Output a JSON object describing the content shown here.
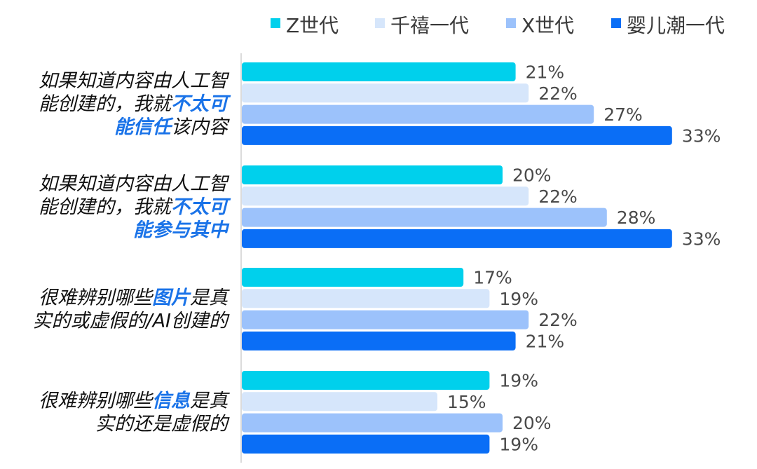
{
  "chart_data": {
    "type": "bar",
    "orientation": "horizontal",
    "legend_position": "top",
    "xlim": [
      0,
      33
    ],
    "series": [
      {
        "name": "Z世代",
        "color": "#00d0ec",
        "values": [
          21,
          20,
          17,
          19
        ]
      },
      {
        "name": "千禧一代",
        "color": "#d6e6fb",
        "values": [
          22,
          22,
          19,
          15
        ]
      },
      {
        "name": "X世代",
        "color": "#9cc2fb",
        "values": [
          27,
          28,
          22,
          20
        ]
      },
      {
        "name": "婴儿潮一代",
        "color": "#0a6ef6",
        "values": [
          33,
          33,
          21,
          19
        ]
      }
    ],
    "value_suffix": "%",
    "categories": [
      {
        "label": "如果知道内容由人工智能创建的，我就不太可能信任该内容",
        "lines": [
          [
            {
              "text": "如果知道内容由人工智",
              "hl": false
            }
          ],
          [
            {
              "text": "能创建的，我就",
              "hl": false
            },
            {
              "text": "不太可",
              "hl": true
            }
          ],
          [
            {
              "text": "能信任",
              "hl": true
            },
            {
              "text": "该内容",
              "hl": false
            }
          ]
        ]
      },
      {
        "label": "如果知道内容由人工智能创建的，我就不太可能参与其中",
        "lines": [
          [
            {
              "text": "如果知道内容由人工智",
              "hl": false
            }
          ],
          [
            {
              "text": "能创建的，我就",
              "hl": false
            },
            {
              "text": "不太可",
              "hl": true
            }
          ],
          [
            {
              "text": "能参与其中",
              "hl": true
            }
          ]
        ]
      },
      {
        "label": "很难辨别哪些图片是真实的或虚假的/AI创建的",
        "lines": [
          [
            {
              "text": "很难辨别哪些",
              "hl": false
            },
            {
              "text": "图片",
              "hl": true
            },
            {
              "text": "是真",
              "hl": false
            }
          ],
          [
            {
              "text": "实的或虚假的/AI创建的",
              "hl": false
            }
          ]
        ]
      },
      {
        "label": "很难辨别哪些信息是真实的还是虚假的",
        "lines": [
          [
            {
              "text": "很难辨别哪些",
              "hl": false
            },
            {
              "text": "信息",
              "hl": true
            },
            {
              "text": "是真",
              "hl": false
            }
          ],
          [
            {
              "text": "实的还是虚假的",
              "hl": false
            }
          ]
        ]
      }
    ]
  }
}
